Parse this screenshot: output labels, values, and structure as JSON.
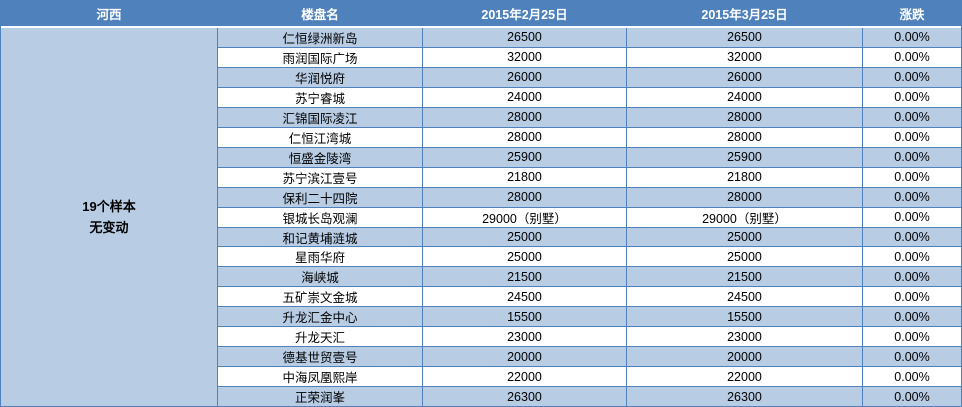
{
  "header": {
    "region": "河西",
    "name_col": "楼盘名",
    "date1": "2015年2月25日",
    "date2": "2015年3月25日",
    "change": "涨跌"
  },
  "summary": {
    "line1": "19个样本",
    "line2": "无变动"
  },
  "rows": [
    {
      "name": "仁恒绿洲新岛",
      "date1": "26500",
      "date2": "26500",
      "change": "0.00%"
    },
    {
      "name": "雨润国际广场",
      "date1": "32000",
      "date2": "32000",
      "change": "0.00%"
    },
    {
      "name": "华润悦府",
      "date1": "26000",
      "date2": "26000",
      "change": "0.00%"
    },
    {
      "name": "苏宁睿城",
      "date1": "24000",
      "date2": "24000",
      "change": "0.00%"
    },
    {
      "name": "汇锦国际凌江",
      "date1": "28000",
      "date2": "28000",
      "change": "0.00%"
    },
    {
      "name": "仁恒江湾城",
      "date1": "28000",
      "date2": "28000",
      "change": "0.00%"
    },
    {
      "name": "恒盛金陵湾",
      "date1": "25900",
      "date2": "25900",
      "change": "0.00%"
    },
    {
      "name": "苏宁滨江壹号",
      "date1": "21800",
      "date2": "21800",
      "change": "0.00%"
    },
    {
      "name": "保利二十四院",
      "date1": "28000",
      "date2": "28000",
      "change": "0.00%"
    },
    {
      "name": "银城长岛观澜",
      "date1": "29000（别墅）",
      "date2": "29000（别墅）",
      "change": "0.00%"
    },
    {
      "name": "和记黄埔涟城",
      "date1": "25000",
      "date2": "25000",
      "change": "0.00%"
    },
    {
      "name": "星雨华府",
      "date1": "25000",
      "date2": "25000",
      "change": "0.00%"
    },
    {
      "name": "海峡城",
      "date1": "21500",
      "date2": "21500",
      "change": "0.00%"
    },
    {
      "name": "五矿崇文金城",
      "date1": "24500",
      "date2": "24500",
      "change": "0.00%"
    },
    {
      "name": "升龙汇金中心",
      "date1": "15500",
      "date2": "15500",
      "change": "0.00%"
    },
    {
      "name": "升龙天汇",
      "date1": "23000",
      "date2": "23000",
      "change": "0.00%"
    },
    {
      "name": "德基世贸壹号",
      "date1": "20000",
      "date2": "20000",
      "change": "0.00%"
    },
    {
      "name": "中海凤凰熙岸",
      "date1": "22000",
      "date2": "22000",
      "change": "0.00%"
    },
    {
      "name": "正荣润峯",
      "date1": "26300",
      "date2": "26300",
      "change": "0.00%"
    }
  ],
  "colors": {
    "header_bg": "#4f81bd",
    "band_bg": "#b8cce4",
    "border_color": "#4f81bd",
    "header_text": "#ffffff",
    "cell_text": "#000000"
  }
}
